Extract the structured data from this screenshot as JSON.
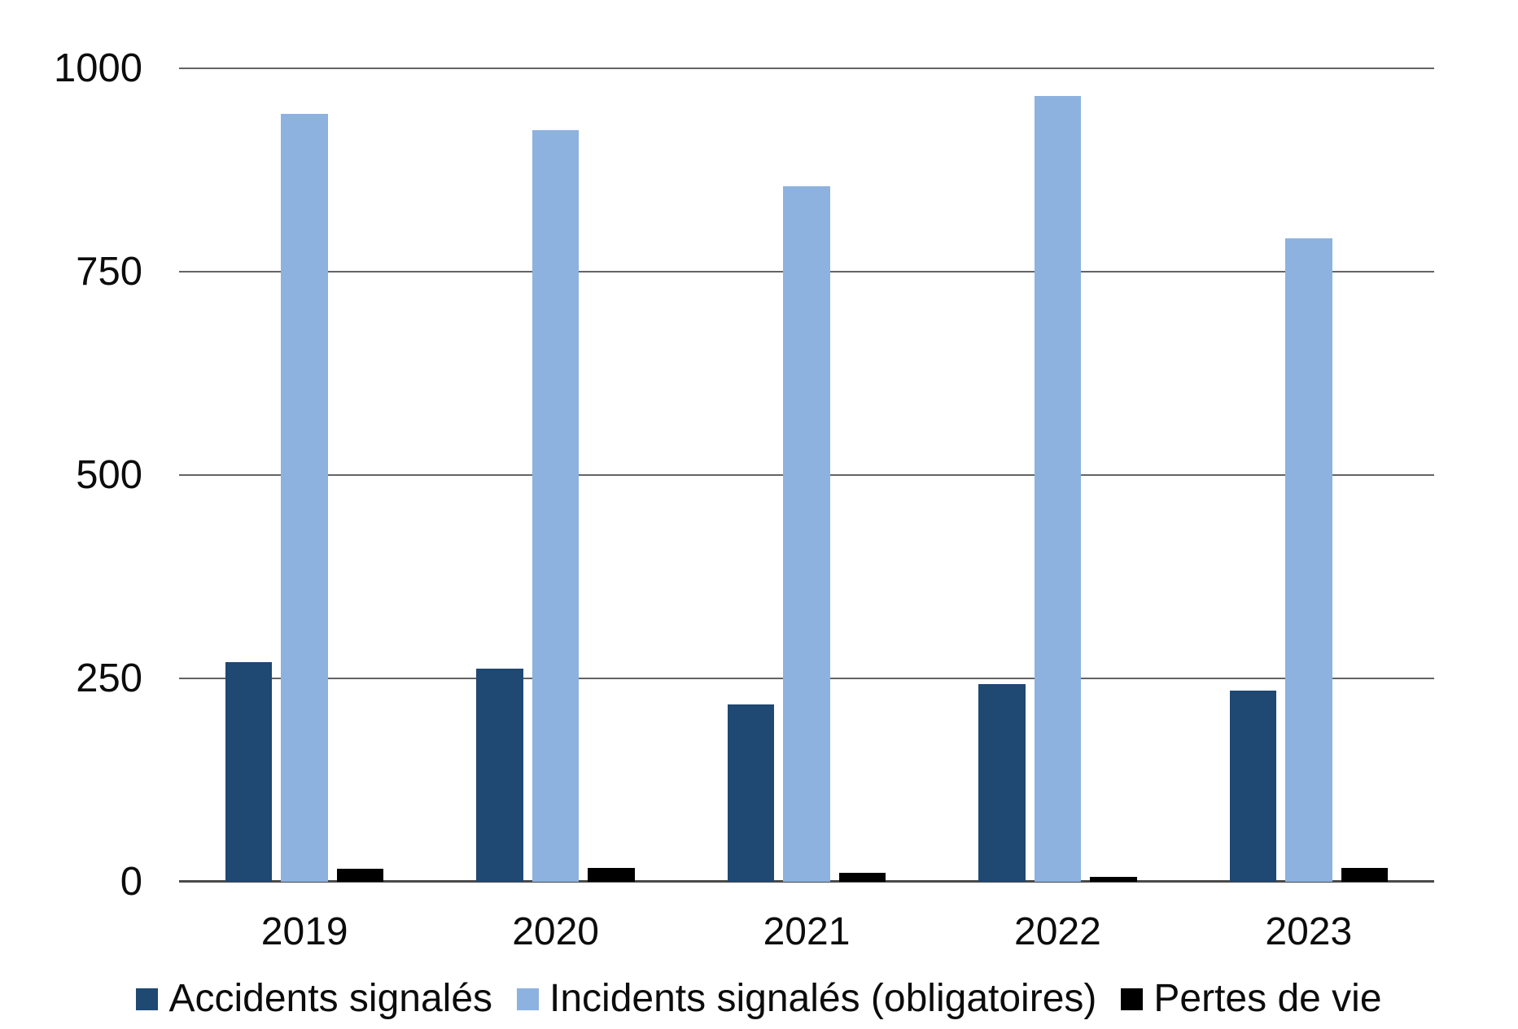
{
  "chart_data": {
    "type": "bar",
    "title": "",
    "categories": [
      "2019",
      "2020",
      "2021",
      "2022",
      "2023"
    ],
    "series": [
      {
        "name": "Accidents signalés",
        "color": "#1F4872",
        "values": [
          270,
          262,
          218,
          243,
          235
        ]
      },
      {
        "name": "Incidents signalés (obligatoires)",
        "color": "#8DB2DF",
        "values": [
          944,
          924,
          855,
          966,
          791
        ]
      },
      {
        "name": "Pertes de vie",
        "color": "#000000",
        "values": [
          16,
          17,
          11,
          6,
          17
        ]
      }
    ],
    "ylim": [
      0,
      1000
    ],
    "yticks": [
      0,
      250,
      500,
      750,
      1000
    ],
    "grid": true,
    "legend_position": "bottom",
    "xlabel": "",
    "ylabel": ""
  },
  "colors": {
    "background": "#ffffff",
    "gridline": "#646464",
    "axis_line": "#4a4a4a",
    "text": "#0c0c0c"
  }
}
